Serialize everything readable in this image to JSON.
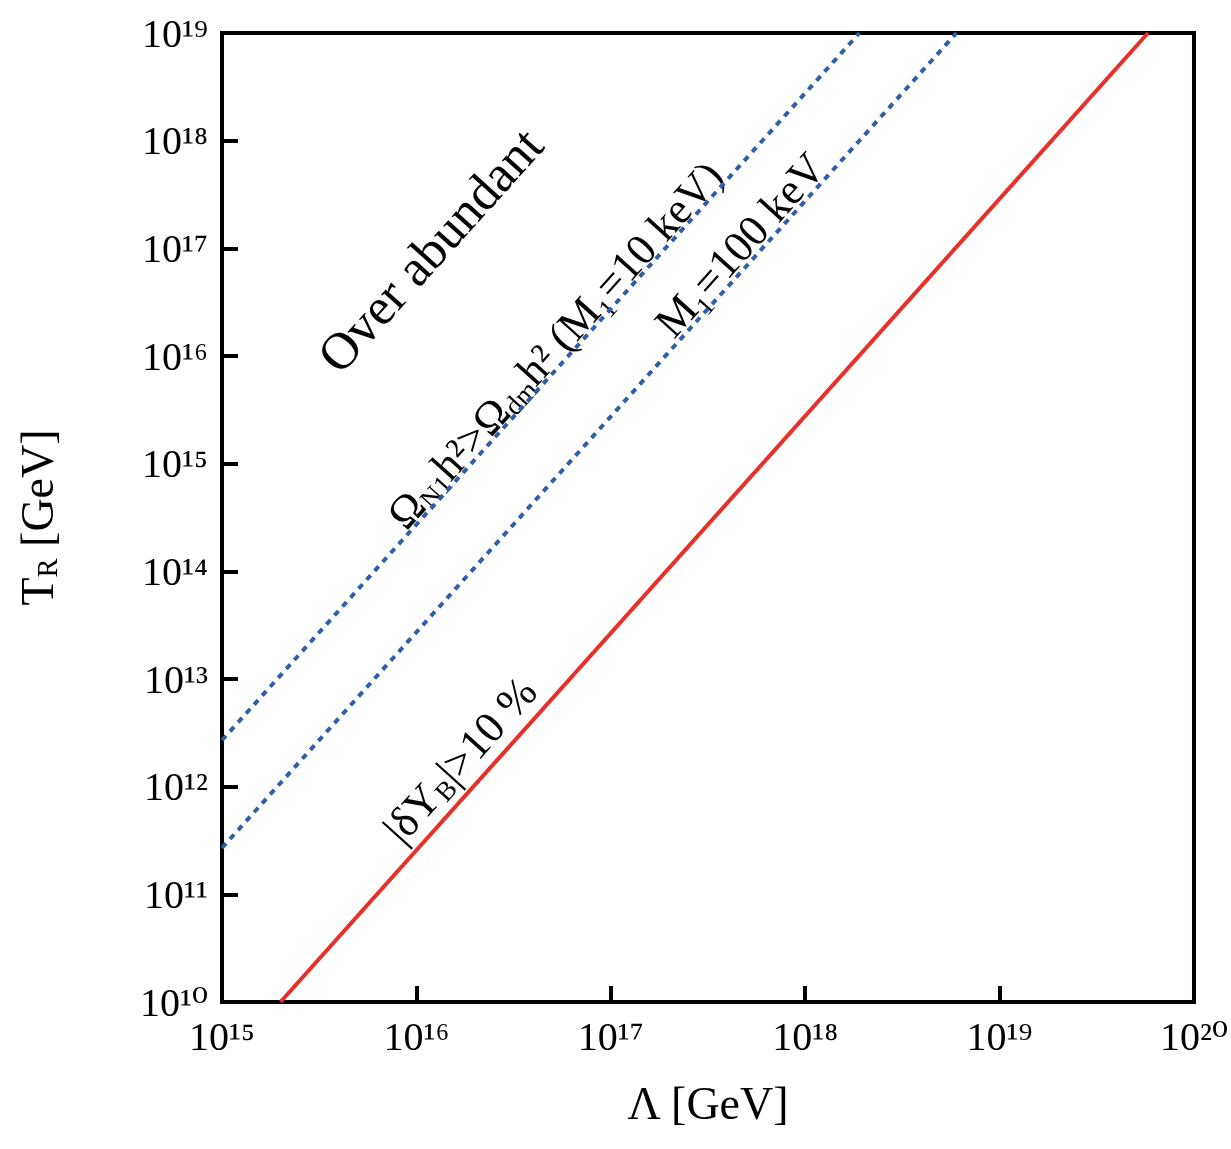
{
  "chart_data": {
    "type": "line",
    "xlabel": "Λ [GeV]",
    "ylabel": "T$_{R}$ [GeV]",
    "log": "xy",
    "xlim": [
      1000000000000000.0,
      1e+20
    ],
    "ylim": [
      10000000000.0,
      1e+19
    ],
    "xticks": [
      {
        "value": 1000000000000000.0,
        "label": "10¹⁵"
      },
      {
        "value": 1e+16,
        "label": "10¹⁶"
      },
      {
        "value": 1e+17,
        "label": "10¹⁷"
      },
      {
        "value": 1e+18,
        "label": "10¹⁸"
      },
      {
        "value": 1e+19,
        "label": "10¹⁹"
      },
      {
        "value": 1e+20,
        "label": "10²⁰"
      }
    ],
    "yticks": [
      {
        "value": 10000000000.0,
        "label": "10¹⁰"
      },
      {
        "value": 100000000000.0,
        "label": "10¹¹"
      },
      {
        "value": 1000000000000.0,
        "label": "10¹²"
      },
      {
        "value": 10000000000000.0,
        "label": "10¹³"
      },
      {
        "value": 100000000000000.0,
        "label": "10¹⁴"
      },
      {
        "value": 1000000000000000.0,
        "label": "10¹⁵"
      },
      {
        "value": 1e+16,
        "label": "10¹⁶"
      },
      {
        "value": 1e+17,
        "label": "10¹⁷"
      },
      {
        "value": 1e+18,
        "label": "10¹⁸"
      },
      {
        "value": 1e+19,
        "label": "10¹⁹"
      }
    ],
    "series": [
      {
        "color": "#2f5fa8",
        "line_style": "dashed",
        "x": [
          1000000000000000.0,
          1.9e+18
        ],
        "values": [
          2700000000000.0,
          1e+19
        ]
      },
      {
        "color": "#2f5fa8",
        "line_style": "dashed",
        "x": [
          1000000000000000.0,
          6e+18
        ],
        "values": [
          270000000000.0,
          1e+19
        ]
      },
      {
        "color": "#e8302a",
        "line_style": "solid",
        "x": [
          2000000000000000.0,
          5.8e+19
        ],
        "values": [
          10000000000.0,
          1e+19
        ]
      }
    ],
    "annotations": [
      "Over abundant",
      "Ω$_{N1}$h²>Ω$_{dm}$h² (M₁=10 keV)",
      "M₁=100 keV",
      "|δY$_{B}$|>10 %"
    ]
  }
}
